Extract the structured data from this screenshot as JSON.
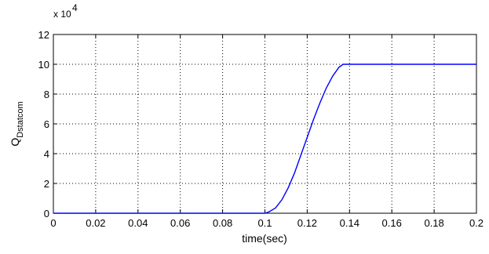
{
  "chart_data": {
    "type": "line",
    "title": "",
    "xlabel": "time(sec)",
    "ylabel_main": "Q",
    "ylabel_sub": "Dstatcom",
    "y_exponent_label": "x 10",
    "y_exponent_power": "4",
    "xlim": [
      0,
      0.2
    ],
    "ylim": [
      0,
      12
    ],
    "x_ticks": [
      0,
      0.02,
      0.04,
      0.06,
      0.08,
      0.1,
      0.12,
      0.14,
      0.16,
      0.18,
      0.2
    ],
    "x_tick_labels": [
      "0",
      "0.02",
      "0.04",
      "0.06",
      "0.08",
      "0.1",
      "0.12",
      "0.14",
      "0.16",
      "0.18",
      "0.2"
    ],
    "y_ticks": [
      0,
      2,
      4,
      6,
      8,
      10,
      12
    ],
    "y_tick_labels": [
      "0",
      "2",
      "4",
      "6",
      "8",
      "10",
      "12"
    ],
    "grid": true,
    "series": [
      {
        "color": "#0000ff",
        "x": [
          0,
          0.1,
          0.102,
          0.105,
          0.108,
          0.111,
          0.114,
          0.117,
          0.12,
          0.123,
          0.126,
          0.129,
          0.132,
          0.135,
          0.137,
          0.138,
          0.15,
          0.2
        ],
        "y": [
          0,
          0,
          0.1,
          0.35,
          0.9,
          1.7,
          2.7,
          3.9,
          5.1,
          6.3,
          7.4,
          8.4,
          9.2,
          9.8,
          10,
          10,
          10,
          10
        ]
      }
    ]
  }
}
